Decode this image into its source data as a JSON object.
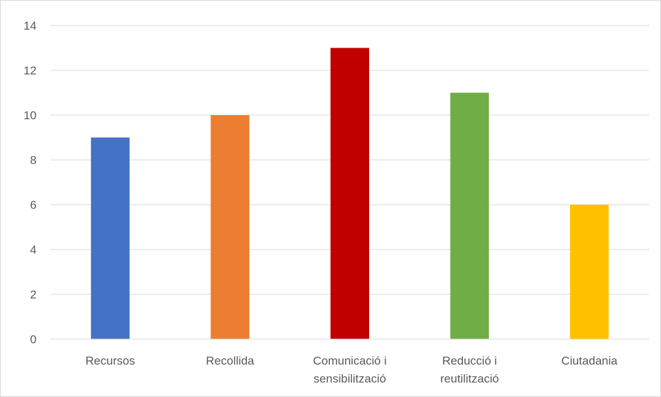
{
  "chart_data": {
    "type": "bar",
    "title": "",
    "xlabel": "",
    "ylabel": "",
    "categories": [
      [
        "Recursos"
      ],
      [
        "Recollida"
      ],
      [
        "Comunicació i",
        "sensibilització"
      ],
      [
        "Reducció i",
        "reutilització"
      ],
      [
        "Ciutadania"
      ]
    ],
    "values": [
      9,
      10,
      13,
      11,
      6
    ],
    "colors": [
      "#4472c4",
      "#ed7d31",
      "#c00000",
      "#70ad47",
      "#ffc000"
    ],
    "ylim": [
      0,
      14
    ],
    "yticks": [
      0,
      2,
      4,
      6,
      8,
      10,
      12,
      14
    ],
    "grid": true,
    "legend": "none",
    "gridline_color": "#d9d9d9",
    "text_color": "#595959"
  }
}
